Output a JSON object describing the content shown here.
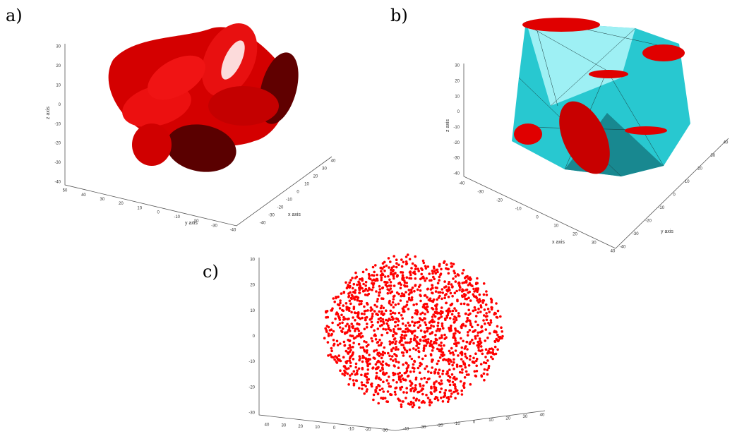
{
  "panels": [
    {
      "label": "a)",
      "z_label": "z axis",
      "y_label": "y axis",
      "x_label": "x axis",
      "z_ticks": [
        30,
        20,
        10,
        0,
        -10,
        -20,
        -30,
        -40
      ],
      "y_ticks": [
        50,
        40,
        30,
        20,
        10,
        0,
        -10,
        -20,
        -30,
        -40
      ],
      "x_ticks": [
        -40,
        -30,
        -20,
        -10,
        0,
        10,
        20,
        30,
        40
      ]
    },
    {
      "label": "b)",
      "z_label": "z axis",
      "x_label": "x axis",
      "y_label": "y axis",
      "z_ticks": [
        30,
        20,
        10,
        0,
        -10,
        -20,
        -30,
        -40
      ],
      "x_ticks": [
        -40,
        -30,
        -20,
        -10,
        0,
        10,
        20,
        30,
        40
      ],
      "y_ticks": [
        -40,
        -30,
        -20,
        -10,
        0,
        10,
        20,
        30,
        40
      ]
    },
    {
      "label": "c)",
      "z_ticks": [
        30,
        20,
        10,
        0,
        -10,
        -20,
        -30
      ],
      "y_ticks": [
        40,
        30,
        20,
        10,
        0,
        -10,
        -20,
        -30
      ],
      "x_ticks": [
        -40,
        -30,
        -20,
        -10,
        0,
        10,
        20,
        30,
        40
      ]
    }
  ]
}
